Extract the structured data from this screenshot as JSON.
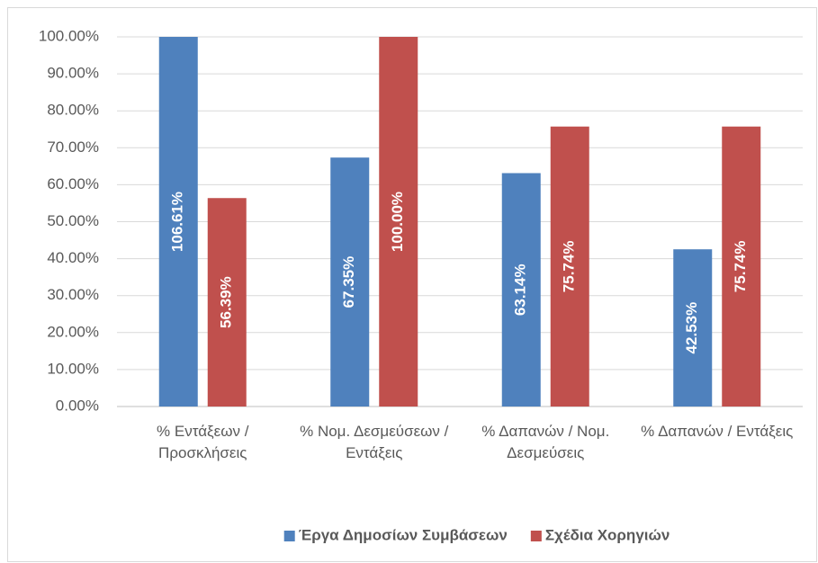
{
  "chart_data": {
    "type": "bar",
    "categories": [
      "% Εντάξεων / Προσκλήσεις",
      "% Νομ. Δεσμεύσεων / Εντάξεις",
      "% Δαπανών / Νομ. Δεσμεύσεις",
      "% Δαπανών / Εντάξεις"
    ],
    "series": [
      {
        "name": "Έργα Δημοσίων Συμβάσεων",
        "color": "#4f81bd",
        "values": [
          106.61,
          67.35,
          63.14,
          42.53
        ],
        "value_labels": [
          "106.61%",
          "67.35%",
          "63.14%",
          "42.53%"
        ]
      },
      {
        "name": "Σχέδια Χορηγιών",
        "color": "#c0504d",
        "values": [
          56.39,
          100,
          75.74,
          75.74
        ],
        "value_labels": [
          "56.39%",
          "100.00%",
          "75.74%",
          "75.74%"
        ]
      }
    ],
    "ylim": [
      0,
      100
    ],
    "yticks": [
      {
        "value": 0,
        "label": "0.00%"
      },
      {
        "value": 10,
        "label": "10.00%"
      },
      {
        "value": 20,
        "label": "20.00%"
      },
      {
        "value": 30,
        "label": "30.00%"
      },
      {
        "value": 40,
        "label": "40.00%"
      },
      {
        "value": 50,
        "label": "50.00%"
      },
      {
        "value": 60,
        "label": "60.00%"
      },
      {
        "value": 70,
        "label": "70.00%"
      },
      {
        "value": 80,
        "label": "80.00%"
      },
      {
        "value": 90,
        "label": "90.00%"
      },
      {
        "value": 100,
        "label": "100.00%"
      }
    ],
    "grid": true,
    "legend": "bottom"
  }
}
